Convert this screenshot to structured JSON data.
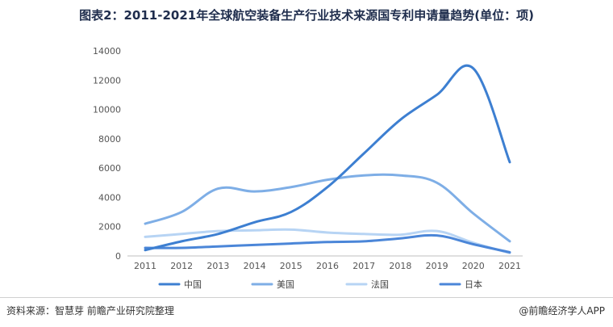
{
  "title": "图表2：2011-2021年全球航空装备生产行业技术来源国专利申请量趋势(单位：项)",
  "footer": {
    "source": "资料来源：智慧芽 前瞻产业研究院整理",
    "brand": "@前瞻经济学人APP"
  },
  "chart_data": {
    "type": "line",
    "title": "图表2：2011-2021年全球航空装备生产行业技术来源国专利申请量趋势(单位：项)",
    "x": [
      "2011",
      "2012",
      "2013",
      "2014",
      "2015",
      "2016",
      "2017",
      "2018",
      "2019",
      "2020",
      "2021"
    ],
    "ylim": [
      0,
      14000
    ],
    "yticks": [
      0,
      2000,
      4000,
      6000,
      8000,
      10000,
      12000,
      14000
    ],
    "grid": false,
    "legend_position": "bottom",
    "series": [
      {
        "name": "中国",
        "color": "#3d7fd1",
        "values": [
          400,
          1000,
          1500,
          2300,
          3000,
          4700,
          7000,
          9300,
          11000,
          12800,
          6400
        ]
      },
      {
        "name": "美国",
        "color": "#7eaee6",
        "values": [
          2200,
          3000,
          4600,
          4400,
          4700,
          5200,
          5500,
          5500,
          5000,
          2900,
          1000
        ]
      },
      {
        "name": "法国",
        "color": "#b7d4f4",
        "values": [
          1300,
          1500,
          1700,
          1750,
          1800,
          1600,
          1500,
          1450,
          1700,
          900,
          200
        ]
      },
      {
        "name": "日本",
        "color": "#4b86d8",
        "values": [
          550,
          550,
          650,
          750,
          850,
          950,
          1000,
          1200,
          1400,
          800,
          250
        ]
      }
    ]
  }
}
